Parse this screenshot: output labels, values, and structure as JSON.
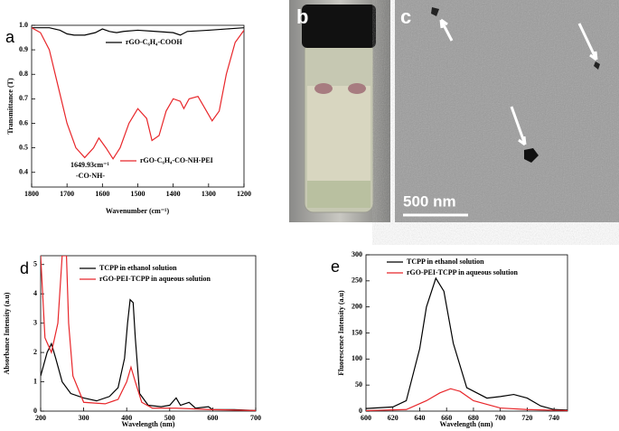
{
  "chart_data": [
    {
      "type": "line",
      "label": "a",
      "x_label": "Wavenumber (cm⁻¹)",
      "y_label": "Transmittance (T)",
      "xlim": [
        1800,
        1200
      ],
      "xticks": [
        1800,
        1700,
        1600,
        1500,
        1400,
        1300,
        1200
      ],
      "ylim": [
        0.34,
        1.0
      ],
      "yticks": [
        0.4,
        0.5,
        0.6,
        0.7,
        0.8,
        0.9,
        {
          "value": 1,
          "label": "1.0"
        }
      ],
      "annotations": [
        "1649.93cm⁻¹",
        "-CO-NH-"
      ],
      "series": [
        {
          "name": "rGO-C₆H₄-COOH",
          "color": "#000000",
          "x": [
            1800,
            1750,
            1720,
            1700,
            1680,
            1650,
            1620,
            1600,
            1580,
            1560,
            1540,
            1500,
            1450,
            1400,
            1380,
            1360,
            1300,
            1250,
            1200
          ],
          "values": [
            0.99,
            0.99,
            0.98,
            0.965,
            0.96,
            0.96,
            0.97,
            0.985,
            0.975,
            0.97,
            0.975,
            0.98,
            0.975,
            0.97,
            0.96,
            0.975,
            0.98,
            0.985,
            0.99
          ]
        },
        {
          "name": "rGO-C₆H₄-CO-NH-PEI",
          "color": "#e8262a",
          "x": [
            1800,
            1775,
            1750,
            1725,
            1700,
            1675,
            1650,
            1625,
            1610,
            1590,
            1570,
            1550,
            1525,
            1500,
            1475,
            1460,
            1440,
            1420,
            1400,
            1380,
            1370,
            1355,
            1330,
            1310,
            1290,
            1270,
            1250,
            1225,
            1200
          ],
          "values": [
            0.99,
            0.97,
            0.9,
            0.75,
            0.6,
            0.5,
            0.46,
            0.5,
            0.54,
            0.5,
            0.455,
            0.5,
            0.6,
            0.66,
            0.62,
            0.53,
            0.55,
            0.65,
            0.7,
            0.69,
            0.66,
            0.7,
            0.71,
            0.66,
            0.61,
            0.65,
            0.8,
            0.93,
            0.98
          ]
        }
      ]
    },
    {
      "type": "line",
      "label": "d",
      "x_label": "Wavelength (nm)",
      "y_label": "Absorbance Intensity (a.u)",
      "xlim": [
        200,
        700
      ],
      "xticks": [
        200,
        300,
        400,
        500,
        600,
        700
      ],
      "ylim": [
        0,
        5.3
      ],
      "yticks": [
        0,
        1,
        2,
        3,
        4,
        5
      ],
      "series": [
        {
          "name": "TCPP in ethanol solution",
          "color": "#000000",
          "x": [
            200,
            215,
            225,
            235,
            250,
            270,
            300,
            330,
            360,
            380,
            395,
            402,
            408,
            415,
            420,
            430,
            450,
            480,
            500,
            515,
            525,
            545,
            560,
            590,
            600,
            650,
            700
          ],
          "values": [
            1.2,
            2.0,
            2.3,
            1.8,
            1.0,
            0.6,
            0.45,
            0.35,
            0.5,
            0.8,
            1.8,
            3.0,
            3.8,
            3.7,
            2.5,
            0.6,
            0.2,
            0.15,
            0.2,
            0.45,
            0.2,
            0.3,
            0.1,
            0.15,
            0.05,
            0.05,
            0.02
          ]
        },
        {
          "name": "rGO-PEI-TCPP in aqueous solution",
          "color": "#e8262a",
          "x": [
            200,
            210,
            225,
            240,
            250,
            260,
            265,
            275,
            300,
            350,
            380,
            400,
            410,
            420,
            435,
            460,
            515,
            600,
            700
          ],
          "values": [
            5.3,
            2.5,
            2.0,
            3.0,
            5.3,
            5.3,
            3.0,
            1.2,
            0.3,
            0.25,
            0.4,
            1.0,
            1.5,
            1.0,
            0.3,
            0.1,
            0.1,
            0.05,
            0.02
          ]
        }
      ]
    },
    {
      "type": "line",
      "label": "e",
      "x_label": "Wavelength (nm)",
      "y_label": "Fluorescence Intensity (a.u)",
      "xlim": [
        600,
        750
      ],
      "xticks": [
        600,
        620,
        640,
        660,
        680,
        700,
        720,
        740
      ],
      "ylim": [
        0,
        300
      ],
      "yticks": [
        0,
        50,
        100,
        150,
        200,
        250,
        300
      ],
      "series": [
        {
          "name": "TCPP in ethanol solution",
          "color": "#000000",
          "x": [
            600,
            620,
            630,
            640,
            645,
            652,
            658,
            665,
            675,
            690,
            700,
            710,
            720,
            730,
            740,
            750
          ],
          "values": [
            5,
            8,
            20,
            120,
            200,
            255,
            230,
            130,
            45,
            25,
            28,
            32,
            25,
            10,
            3,
            2
          ]
        },
        {
          "name": "rGO-PEI-TCPP in aqueous solution",
          "color": "#e8262a",
          "x": [
            600,
            630,
            645,
            655,
            663,
            670,
            680,
            700,
            720,
            750
          ],
          "values": [
            1,
            3,
            20,
            35,
            43,
            38,
            20,
            6,
            3,
            1
          ]
        }
      ]
    }
  ],
  "photos": [
    {
      "label": "b"
    },
    {
      "label": "c",
      "scale_bar": "500 nm"
    }
  ]
}
